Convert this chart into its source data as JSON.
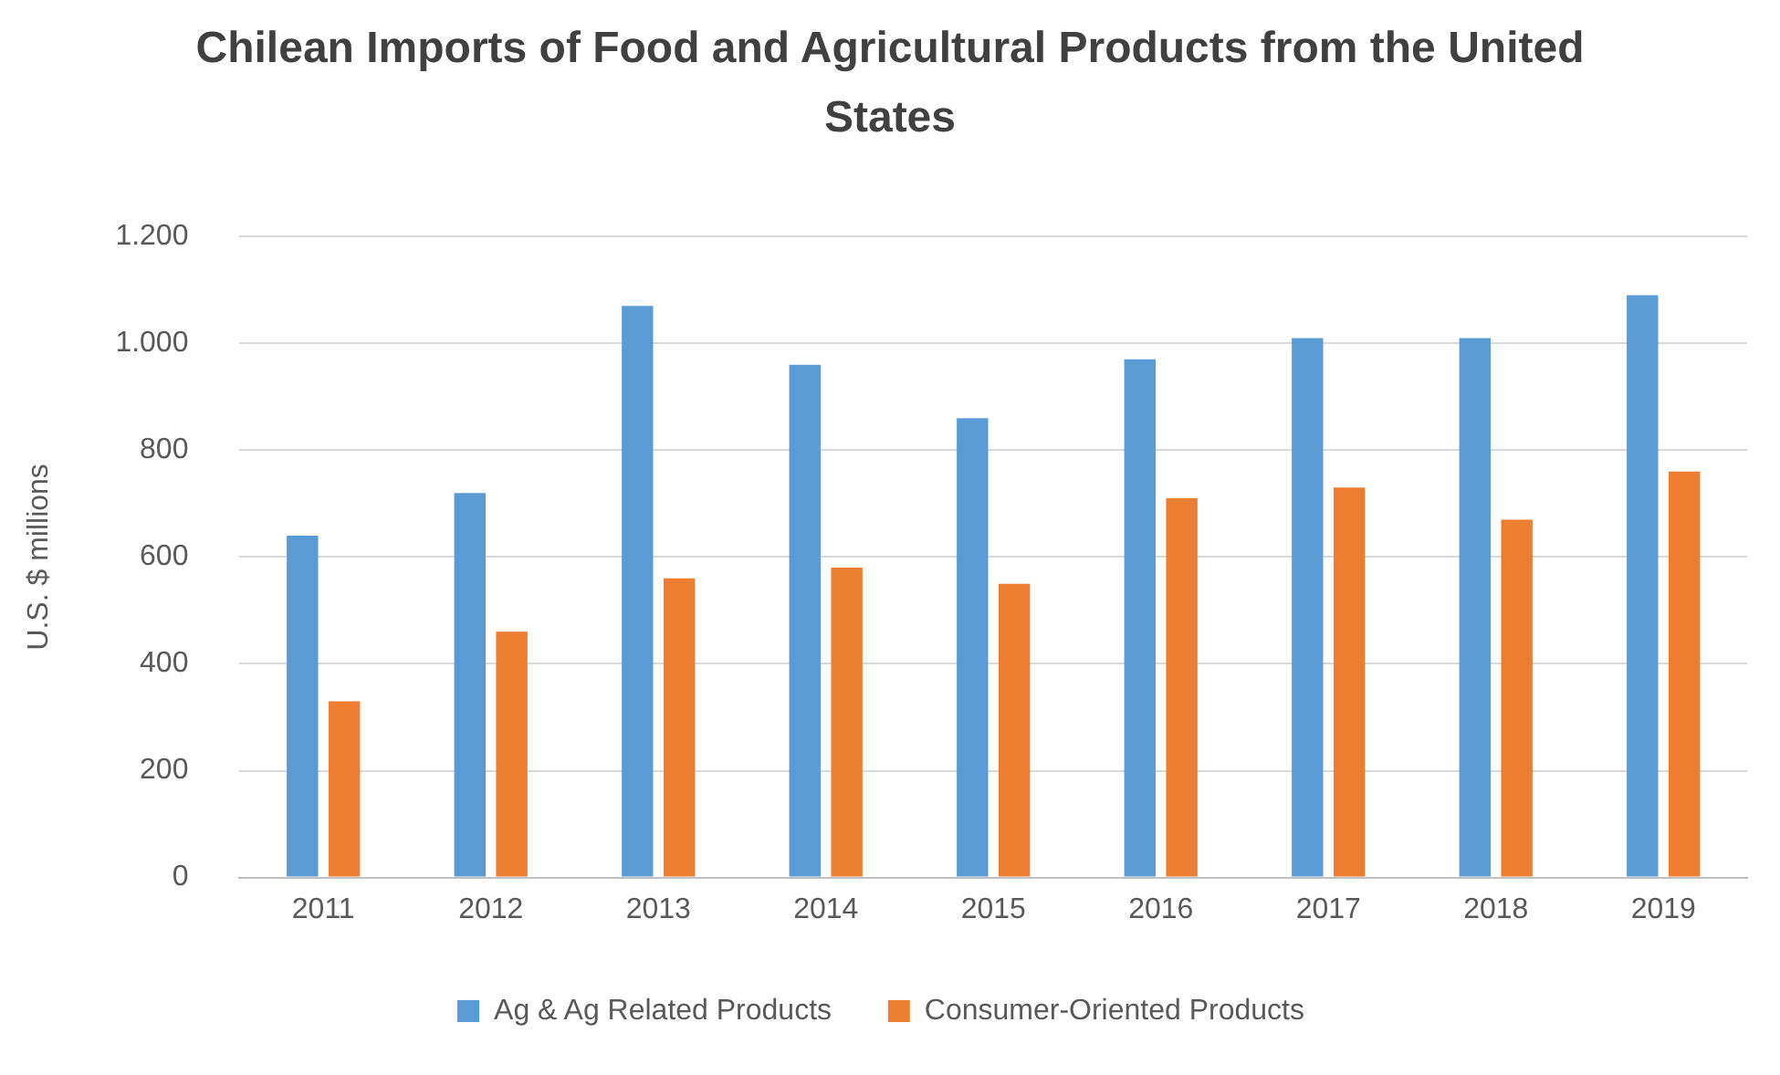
{
  "chart_data": {
    "type": "bar",
    "title": "Chilean Imports of Food and Agricultural Products from the United States",
    "ylabel": "U.S. $ millions",
    "categories": [
      "2011",
      "2012",
      "2013",
      "2014",
      "2015",
      "2016",
      "2017",
      "2018",
      "2019"
    ],
    "series": [
      {
        "name": "Ag & Ag Related Products",
        "color": "#5b9bd5",
        "values": [
          640,
          720,
          1070,
          960,
          860,
          970,
          1010,
          1010,
          1090
        ]
      },
      {
        "name": "Consumer-Oriented Products",
        "color": "#ed7d31",
        "values": [
          330,
          460,
          560,
          580,
          550,
          710,
          730,
          670,
          760
        ]
      }
    ],
    "ylim": [
      0,
      1200
    ],
    "yticks": [
      0,
      200,
      400,
      600,
      800,
      {
        "value": 1000,
        "label": "1.000"
      },
      {
        "value": 1200,
        "label": "1.200"
      }
    ],
    "grid": "y",
    "legend": "bottom"
  }
}
